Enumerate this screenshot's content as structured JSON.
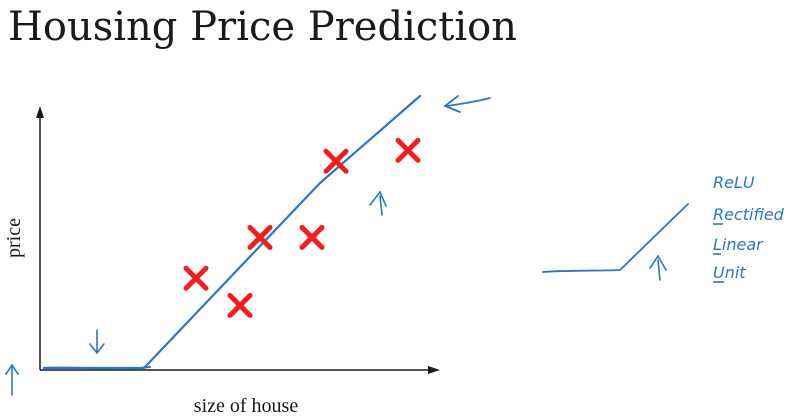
{
  "colors": {
    "ink": "#1a1a1a",
    "pen": "#2b76c9",
    "marker": "#f01e1e"
  },
  "chart_data": {
    "type": "scatter",
    "title": "Housing Price Prediction",
    "xlabel": "size of house",
    "ylabel": "price",
    "xlim": [
      0,
      10
    ],
    "ylim": [
      0,
      10
    ],
    "grid": false,
    "legend": "none",
    "points": [
      {
        "x": 3.9,
        "y": 3.3
      },
      {
        "x": 5.0,
        "y": 2.3
      },
      {
        "x": 5.5,
        "y": 4.8
      },
      {
        "x": 6.8,
        "y": 4.8
      },
      {
        "x": 7.4,
        "y": 7.6
      },
      {
        "x": 9.2,
        "y": 8.0
      }
    ],
    "fit_line": {
      "x": [
        0.1,
        2.6,
        7.0,
        9.5
      ],
      "y": [
        0.0,
        0.0,
        6.8,
        10.0
      ]
    }
  },
  "annotation": {
    "relu_letters": [
      "ReLU",
      "Rectified",
      "Linear",
      "Unit"
    ]
  },
  "icons": [
    "up-arrow-icon",
    "down-arrow-icon",
    "left-arrow-icon"
  ]
}
